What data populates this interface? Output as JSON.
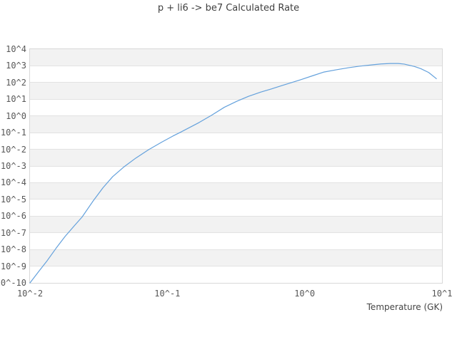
{
  "chart": {
    "title": "p + li6 -> be7 Calculated Rate",
    "xlabel": "Temperature (GK)"
  },
  "chart_data": {
    "type": "line",
    "title": "p + li6 -> be7 Calculated Rate",
    "xlabel": "Temperature (GK)",
    "ylabel": "",
    "x_scale": "log",
    "y_scale": "log",
    "xlim": [
      0.01,
      10
    ],
    "ylim": [
      1e-10,
      10000.0
    ],
    "x_ticks": [
      "10^-2",
      "10^-1",
      "10^0",
      "10^1"
    ],
    "y_ticks": [
      "10^4",
      "10^3",
      "10^2",
      "10^1",
      "10^0",
      "10^-1",
      "10^-2",
      "10^-3",
      "10^-4",
      "10^-5",
      "10^-6",
      "10^-7",
      "10^-8",
      "10^-9",
      "10^-10"
    ],
    "grid": "horizontal gridlines with alternating shaded decade bands, no vertical gridlines",
    "legend": "none",
    "colors": {
      "line": "#64a1dc",
      "band": "#f2f2f2",
      "gridline": "#e2e2e2",
      "plot_border": "#d9d9d9",
      "text": "#575757"
    },
    "series": [
      {
        "name": "calculated rate",
        "color": "#64a1dc",
        "points": [
          [
            0.01,
            1e-10
          ],
          [
            0.0115,
            4.5e-10
          ],
          [
            0.0132,
            1.9e-09
          ],
          [
            0.0155,
            1.2e-08
          ],
          [
            0.018,
            6e-08
          ],
          [
            0.021,
            2.6e-07
          ],
          [
            0.024,
            9e-07
          ],
          [
            0.0288,
            8e-06
          ],
          [
            0.034,
            5e-05
          ],
          [
            0.04,
            0.00023
          ],
          [
            0.048,
            0.00085
          ],
          [
            0.059,
            0.003
          ],
          [
            0.073,
            0.0095
          ],
          [
            0.091,
            0.027
          ],
          [
            0.11,
            0.063
          ],
          [
            0.126,
            0.11
          ],
          [
            0.17,
            0.4
          ],
          [
            0.21,
            1.1
          ],
          [
            0.26,
            3.3
          ],
          [
            0.32,
            7.5
          ],
          [
            0.39,
            15
          ],
          [
            0.48,
            27
          ],
          [
            0.57,
            41
          ],
          [
            0.7,
            70
          ],
          [
            0.93,
            145
          ],
          [
            1.15,
            260
          ],
          [
            1.37,
            420
          ],
          [
            1.7,
            580
          ],
          [
            2.1,
            780
          ],
          [
            2.5,
            950
          ],
          [
            3.1,
            1150
          ],
          [
            3.6,
            1300
          ],
          [
            4.2,
            1380
          ],
          [
            4.8,
            1380
          ],
          [
            5.3,
            1280
          ],
          [
            6.3,
            920
          ],
          [
            7.0,
            680
          ],
          [
            8.0,
            400
          ],
          [
            9.1,
            170
          ]
        ]
      }
    ]
  }
}
